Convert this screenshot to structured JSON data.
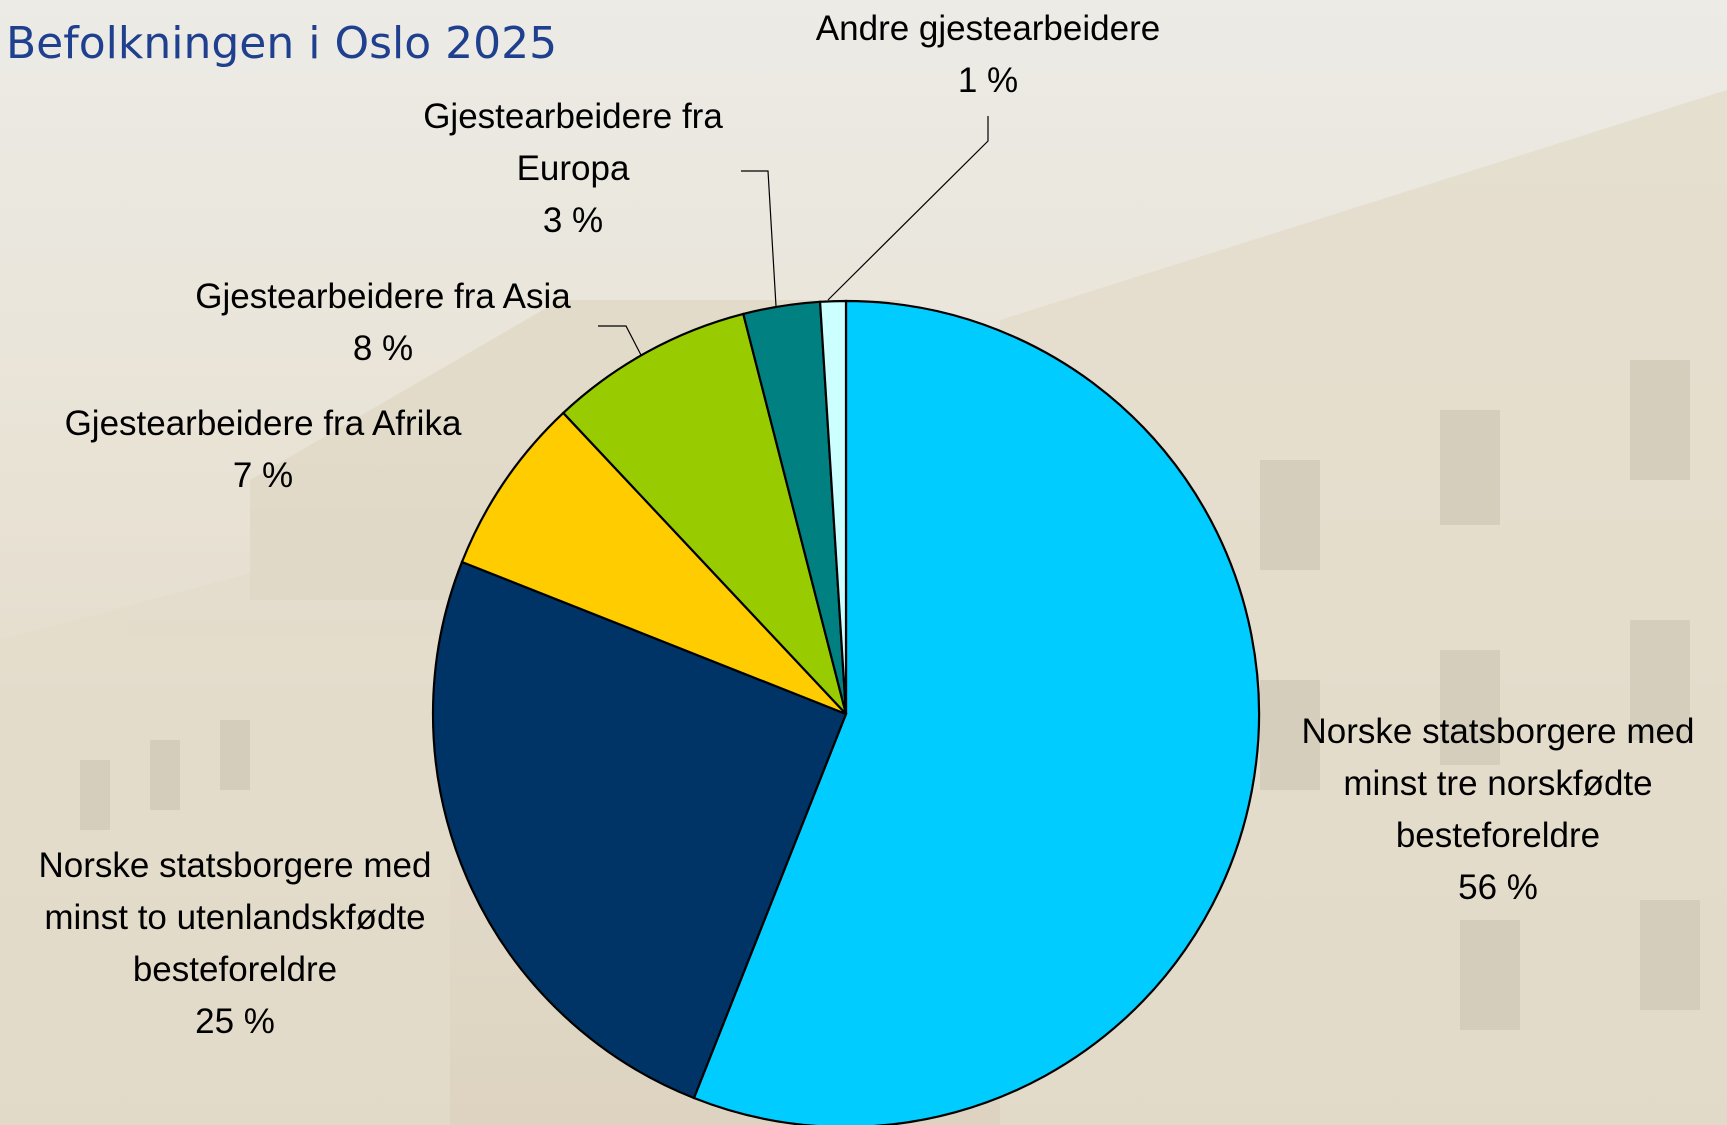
{
  "chart_data": {
    "type": "pie",
    "title": "Befolkningen i Oslo 2025",
    "categories": [
      "Norske statsborgere med minst tre norskfødte besteforeldre",
      "Norske statsborgere med minst to utenlandskfødte besteforeldre",
      "Gjestearbeidere fra Afrika",
      "Gjestearbeidere fra Asia",
      "Gjestearbeidere fra Europa",
      "Andre gjestearbeidere"
    ],
    "values": [
      56,
      25,
      7,
      8,
      3,
      1
    ],
    "value_labels": [
      "56 %",
      "25 %",
      "7 %",
      "8 %",
      "3 %",
      "1 %"
    ],
    "colors": [
      "#00ccff",
      "#003366",
      "#ffcc00",
      "#99cc00",
      "#008080",
      "#ccffff"
    ]
  }
}
